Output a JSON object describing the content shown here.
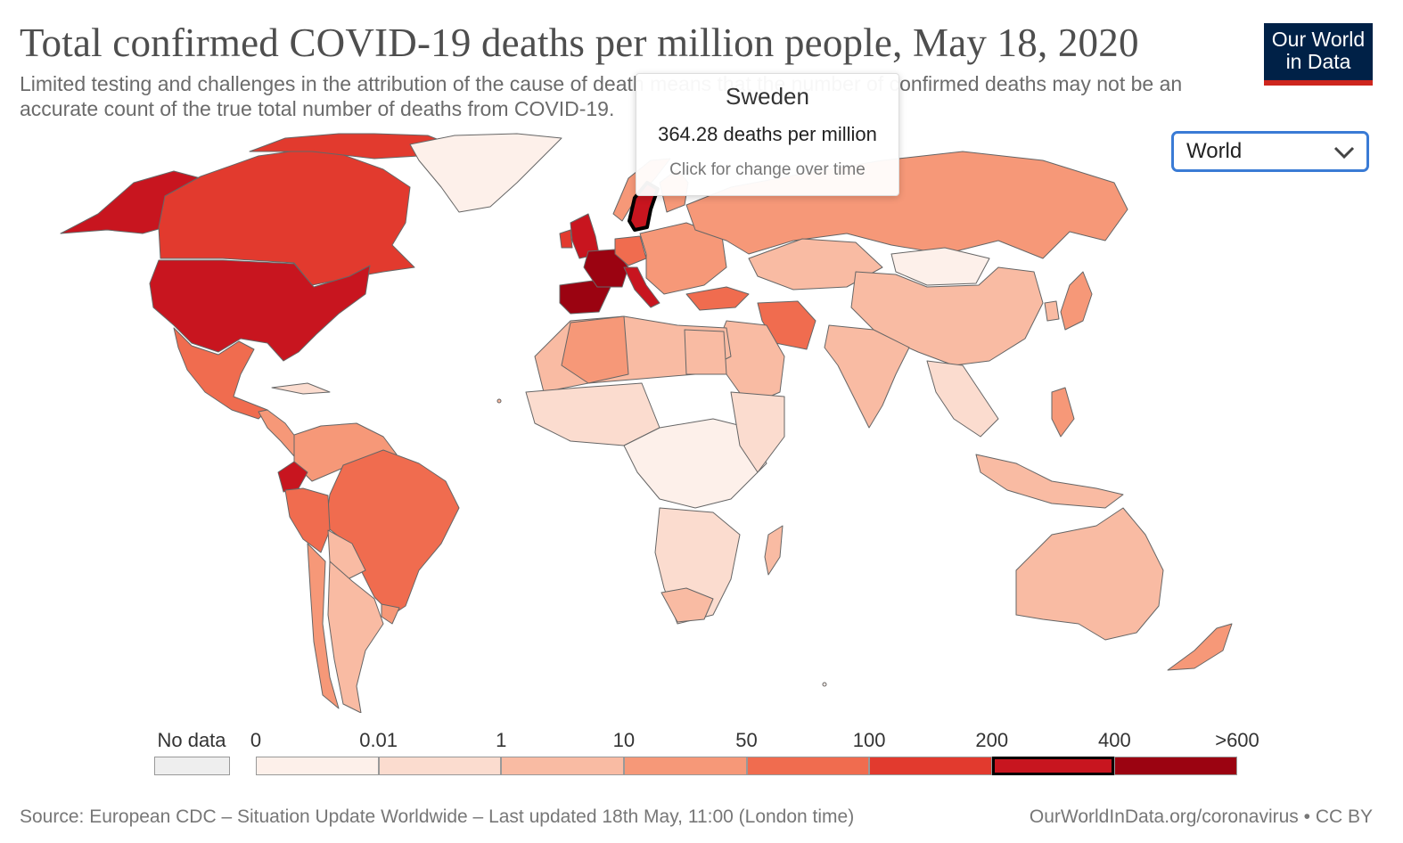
{
  "header": {
    "title": "Total confirmed COVID-19 deaths per million people, May 18, 2020",
    "subtitle": "Limited testing and challenges in the attribution of the cause of death means that the number of confirmed deaths may not be an accurate count of the true total number of deaths from COVID-19."
  },
  "logo": {
    "line1": "Our World",
    "line2": "in Data"
  },
  "region_select": {
    "value": "World",
    "icon": "chevron-down-icon"
  },
  "tooltip": {
    "country": "Sweden",
    "value": "364.28 deaths per million",
    "hint": "Click for change over time"
  },
  "legend": {
    "no_data_label": "No data",
    "no_data_color": "#eeeeee",
    "bins": [
      {
        "label": "0",
        "color": "#fdf0ea"
      },
      {
        "label": "0.01",
        "color": "#fbdccf"
      },
      {
        "label": "1",
        "color": "#f9bba3"
      },
      {
        "label": "10",
        "color": "#f69878"
      },
      {
        "label": "50",
        "color": "#f06c4f"
      },
      {
        "label": "100",
        "color": "#e23a2e"
      },
      {
        "label": "200",
        "color": "#c8151f"
      },
      {
        "label": "400",
        "color": "#9b0311"
      }
    ],
    "end_label": ">600",
    "highlighted_bin": 6
  },
  "footer": {
    "source": "Source: European CDC – Situation Update Worldwide – Last updated 18th May, 11:00 (London time)",
    "credit": "OurWorldInData.org/coronavirus • CC BY"
  }
}
